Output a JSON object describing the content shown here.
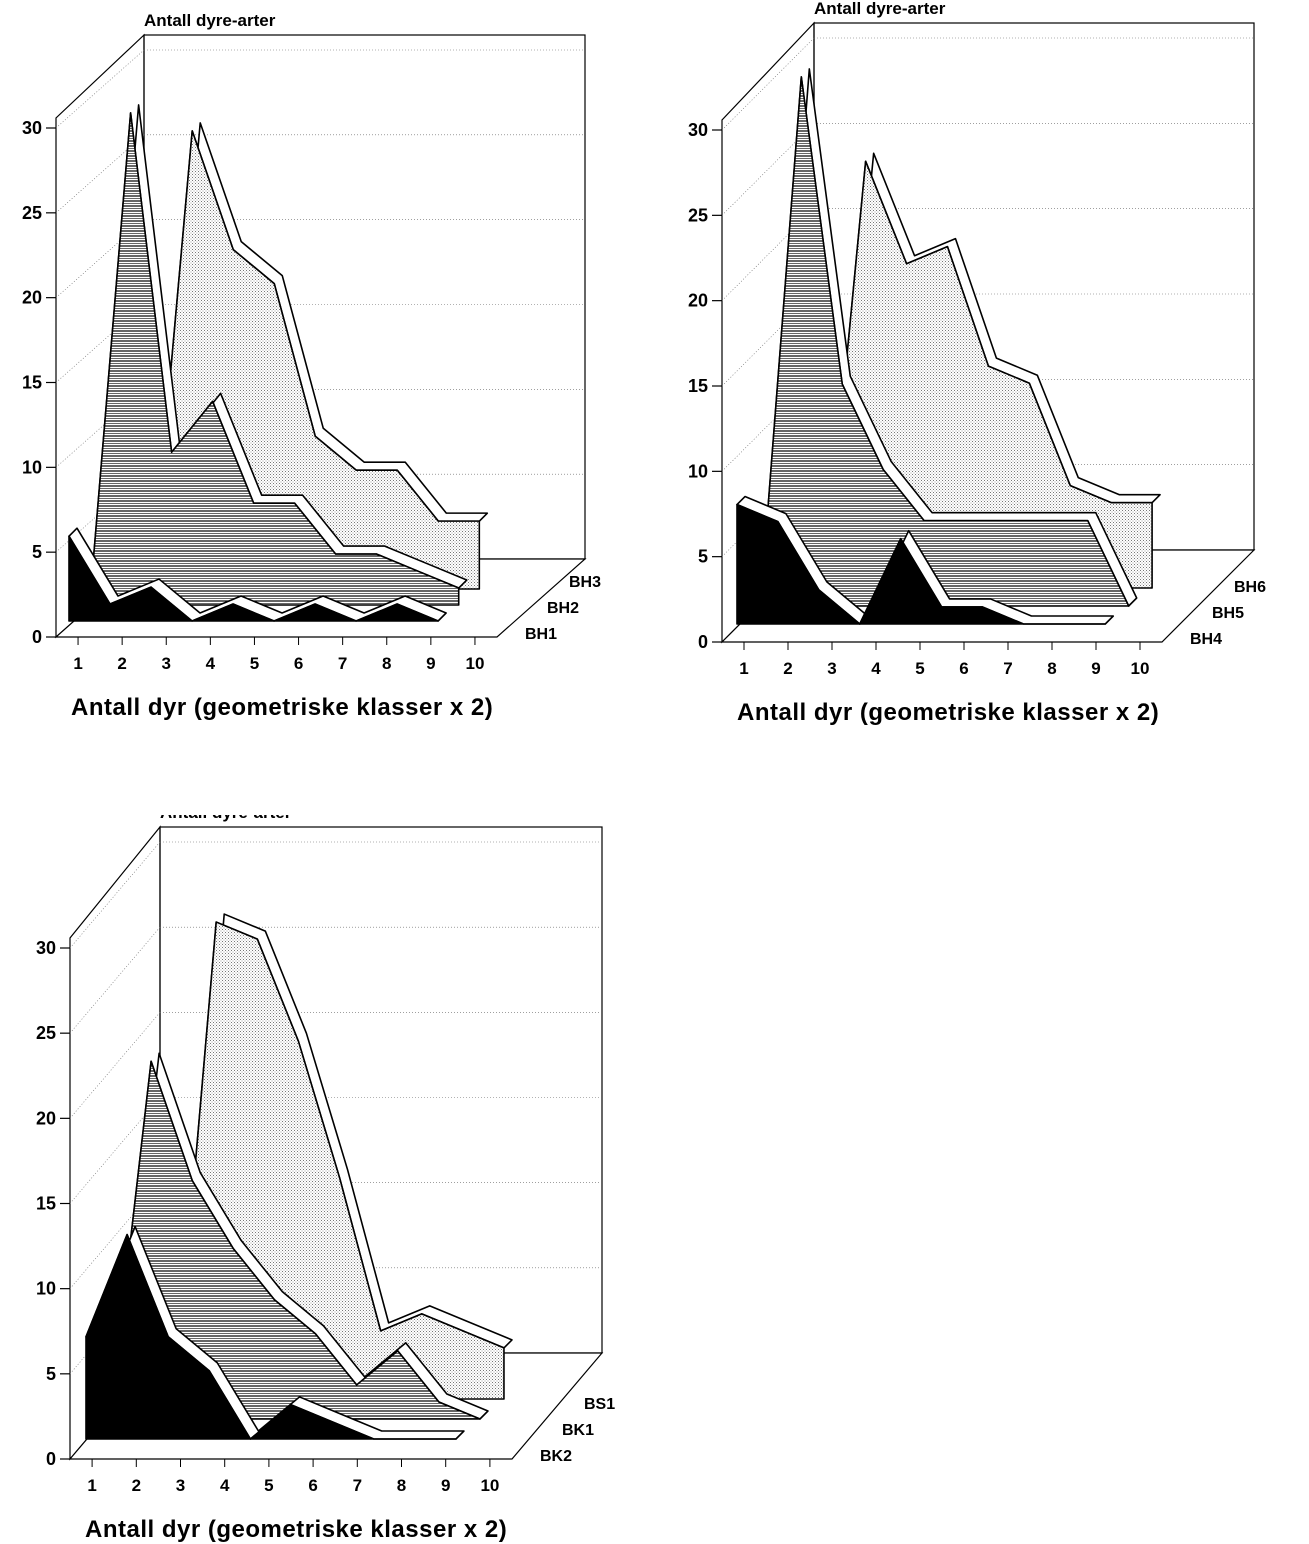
{
  "chart_data": [
    {
      "type": "area",
      "title": "",
      "ylabel": "Antall dyre-arter",
      "xlabel": "Antall dyr (geometriske klasser x 2)",
      "categories": [
        "1",
        "2",
        "3",
        "4",
        "5",
        "6",
        "7",
        "8",
        "9",
        "10"
      ],
      "ylim": [
        0,
        30
      ],
      "yticks": [
        "0",
        "5",
        "10",
        "15",
        "20",
        "25",
        "30"
      ],
      "grid": true,
      "legend": "series labels at right end of each ribbon",
      "series": [
        {
          "name": "BH1",
          "fill": "solid-black",
          "values": [
            5,
            1,
            2,
            0,
            1,
            0,
            1,
            0,
            1,
            0
          ]
        },
        {
          "name": "BH2",
          "fill": "hatched",
          "values": [
            0,
            29,
            9,
            12,
            6,
            6,
            3,
            3,
            2,
            1
          ]
        },
        {
          "name": "BH3",
          "fill": "dotted",
          "values": [
            0,
            0,
            27,
            20,
            18,
            9,
            7,
            7,
            4,
            4
          ]
        }
      ]
    },
    {
      "type": "area",
      "title": "",
      "ylabel": "Antall dyre-arter",
      "xlabel": "Antall dyr (geometriske klasser x 2)",
      "categories": [
        "1",
        "2",
        "3",
        "4",
        "5",
        "6",
        "7",
        "8",
        "9",
        "10"
      ],
      "ylim": [
        0,
        30
      ],
      "yticks": [
        "0",
        "5",
        "10",
        "15",
        "20",
        "25",
        "30"
      ],
      "grid": true,
      "legend": "series labels at right end of each ribbon",
      "series": [
        {
          "name": "BH4",
          "fill": "solid-black",
          "values": [
            7,
            6,
            2,
            0,
            5,
            1,
            1,
            0,
            0,
            0
          ]
        },
        {
          "name": "BH5",
          "fill": "hatched",
          "values": [
            0,
            31,
            13,
            8,
            5,
            5,
            5,
            5,
            5,
            0
          ]
        },
        {
          "name": "BH6",
          "fill": "dotted",
          "values": [
            0,
            0,
            25,
            19,
            20,
            13,
            12,
            6,
            5,
            5
          ]
        }
      ]
    },
    {
      "type": "area",
      "title": "",
      "ylabel": "Antall dyre-arter",
      "xlabel": "Antall dyr (geometriske klasser x 2)",
      "categories": [
        "1",
        "2",
        "3",
        "4",
        "5",
        "6",
        "7",
        "8",
        "9",
        "10"
      ],
      "ylim": [
        0,
        30
      ],
      "yticks": [
        "0",
        "5",
        "10",
        "15",
        "20",
        "25",
        "30"
      ],
      "grid": true,
      "legend": "series labels at right end of each ribbon",
      "series": [
        {
          "name": "BK2",
          "fill": "solid-black",
          "values": [
            6,
            12,
            6,
            4,
            0,
            2,
            1,
            0,
            0,
            0
          ]
        },
        {
          "name": "BK1",
          "fill": "hatched",
          "values": [
            0,
            21,
            14,
            10,
            7,
            5,
            2,
            4,
            1,
            0
          ]
        },
        {
          "name": "BS1",
          "fill": "dotted",
          "values": [
            0,
            0,
            28,
            27,
            21,
            13,
            4,
            5,
            4,
            3
          ]
        }
      ]
    }
  ]
}
